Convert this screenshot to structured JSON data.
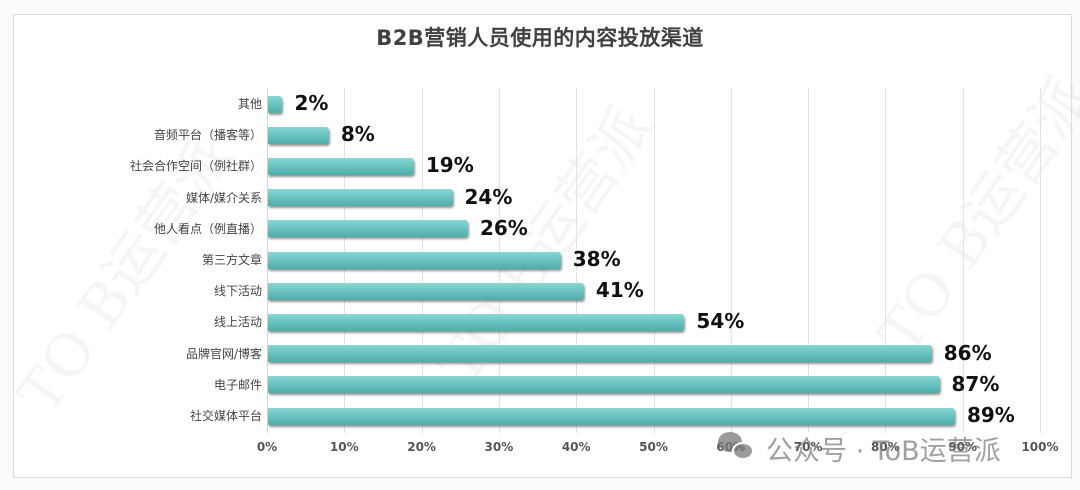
{
  "title": "B2B营销人员使用的内容投放渠道",
  "chart_data": {
    "type": "bar",
    "orientation": "horizontal",
    "title": "B2B营销人员使用的内容投放渠道",
    "categories": [
      "其他",
      "音频平台（播客等）",
      "社会合作空间（例社群）",
      "媒体/媒介关系",
      "他人看点（例直播）",
      "第三方文章",
      "线下活动",
      "线上活动",
      "品牌官网/博客",
      "电子邮件",
      "社交媒体平台"
    ],
    "values": [
      2,
      8,
      19,
      24,
      26,
      38,
      41,
      54,
      86,
      87,
      89
    ],
    "value_labels": [
      "2%",
      "8%",
      "19%",
      "24%",
      "26%",
      "38%",
      "41%",
      "54%",
      "86%",
      "87%",
      "89%"
    ],
    "xlabel": "",
    "ylabel": "",
    "xlim": [
      0,
      100
    ],
    "x_ticks": [
      "0%",
      "10%",
      "20%",
      "30%",
      "40%",
      "50%",
      "60%",
      "70%",
      "80%",
      "90%",
      "100%"
    ],
    "grid": true,
    "legend": null,
    "bar_color": "#6cc4c1"
  },
  "watermark": {
    "text": "公众号 · ToB运营派",
    "icon": "wechat-icon"
  },
  "background_watermark": "TO B运营派"
}
